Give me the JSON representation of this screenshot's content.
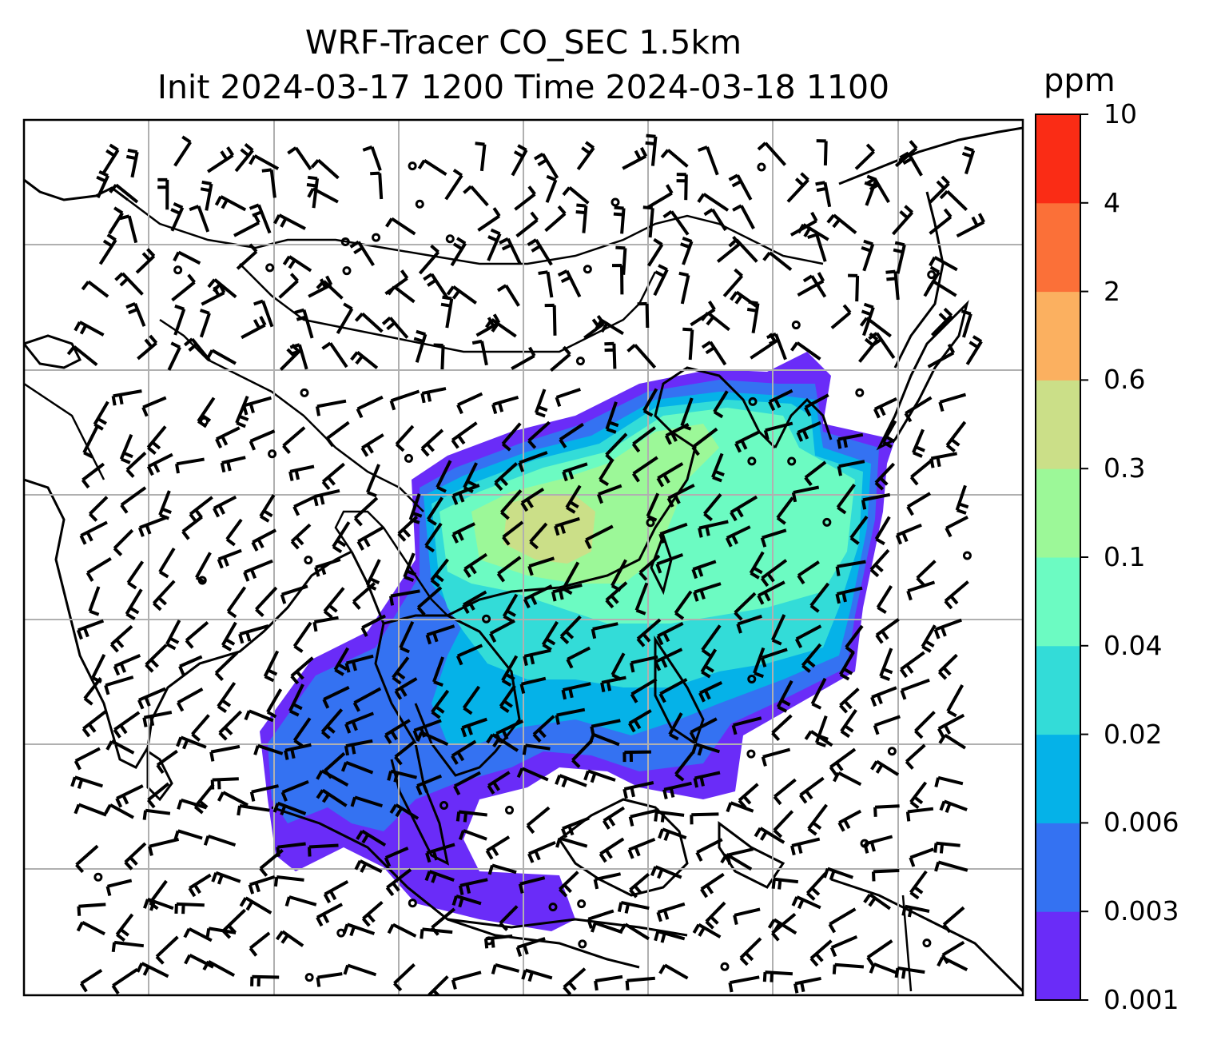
{
  "title": {
    "line1": "WRF-Tracer CO_SEC 1.5km",
    "line2": "Init 2024-03-17 1200 Time 2024-03-18 1100"
  },
  "colorbar": {
    "unit": "ppm",
    "ticks": [
      "0.001",
      "0.003",
      "0.006",
      "0.02",
      "0.04",
      "0.1",
      "0.3",
      "0.6",
      "2",
      "4",
      "10"
    ],
    "colors": [
      "#6a2cf8",
      "#3472f2",
      "#05b2e8",
      "#33dcd8",
      "#6cfbc2",
      "#9cf898",
      "#cbdf88",
      "#fbb060",
      "#fb7038",
      "#fa2c15"
    ]
  },
  "map": {
    "gridlines": true,
    "overlays": [
      "coastlines",
      "country-borders",
      "wind-barbs",
      "calm-wind-circles"
    ]
  }
}
